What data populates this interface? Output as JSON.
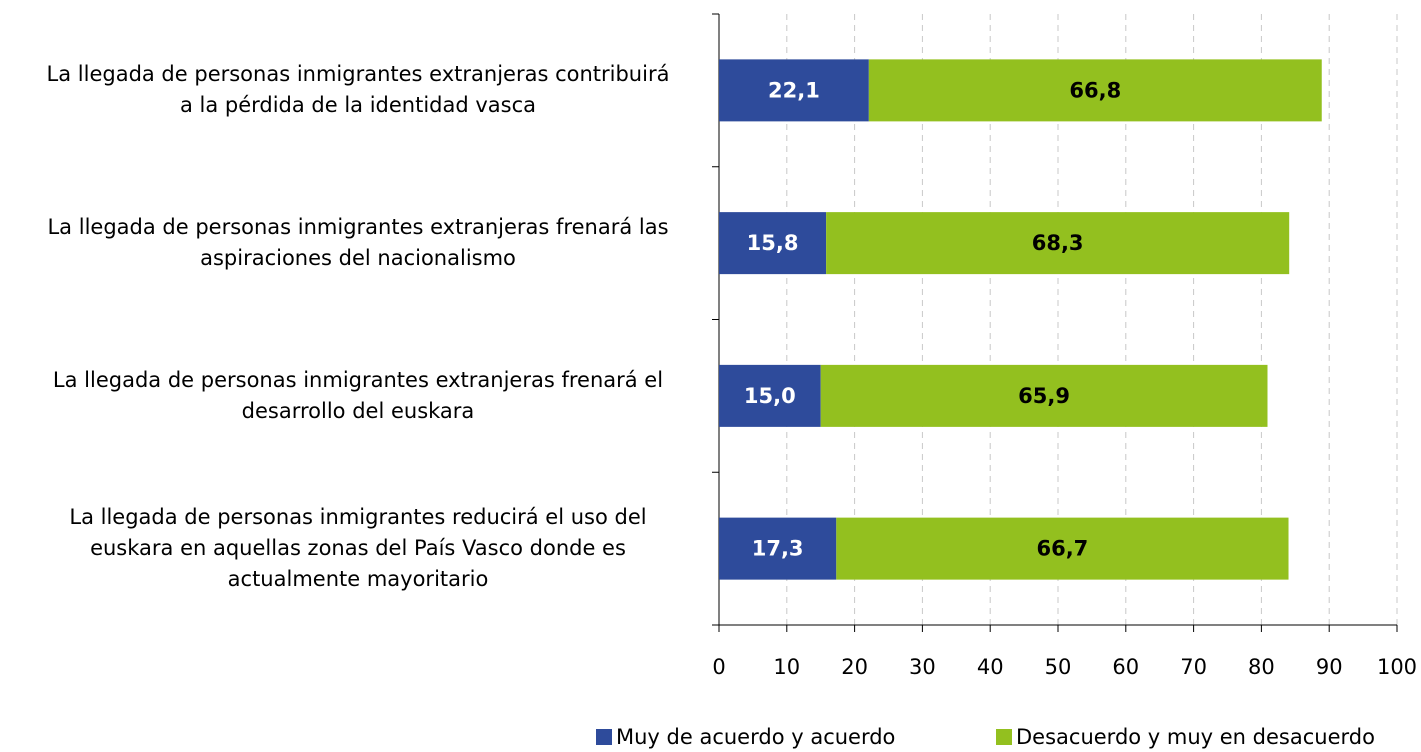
{
  "chart_data": {
    "type": "bar",
    "orientation": "horizontal",
    "stacked": true,
    "categories": [
      "La llegada de personas inmigrantes extranjeras contribuirá\na la pérdida de la identidad vasca",
      "La llegada de personas inmigrantes extranjeras frenará las\naspiraciones del nacionalismo",
      "La llegada de personas inmigrantes extranjeras frenará el\ndesarrollo del euskara",
      "La llegada de personas inmigrantes reducirá el uso del\neuskara en aquellas zonas del País Vasco donde es\nactualmente mayoritario"
    ],
    "series": [
      {
        "name": "Muy de acuerdo y acuerdo",
        "color": "#2e4b9b",
        "values": [
          22.1,
          15.8,
          15.0,
          17.3
        ],
        "value_labels": [
          "22,1",
          "15,8",
          "15,0",
          "17,3"
        ]
      },
      {
        "name": "Desacuerdo y muy en desacuerdo",
        "color": "#93c01f",
        "values": [
          66.8,
          68.3,
          65.9,
          66.7
        ],
        "value_labels": [
          "66,8",
          "68,3",
          "65,9",
          "66,7"
        ]
      }
    ],
    "xlim": [
      0,
      100
    ],
    "xticks": [
      0,
      10,
      20,
      30,
      40,
      50,
      60,
      70,
      80,
      90,
      100
    ],
    "grid": true,
    "legend": "bottom"
  }
}
